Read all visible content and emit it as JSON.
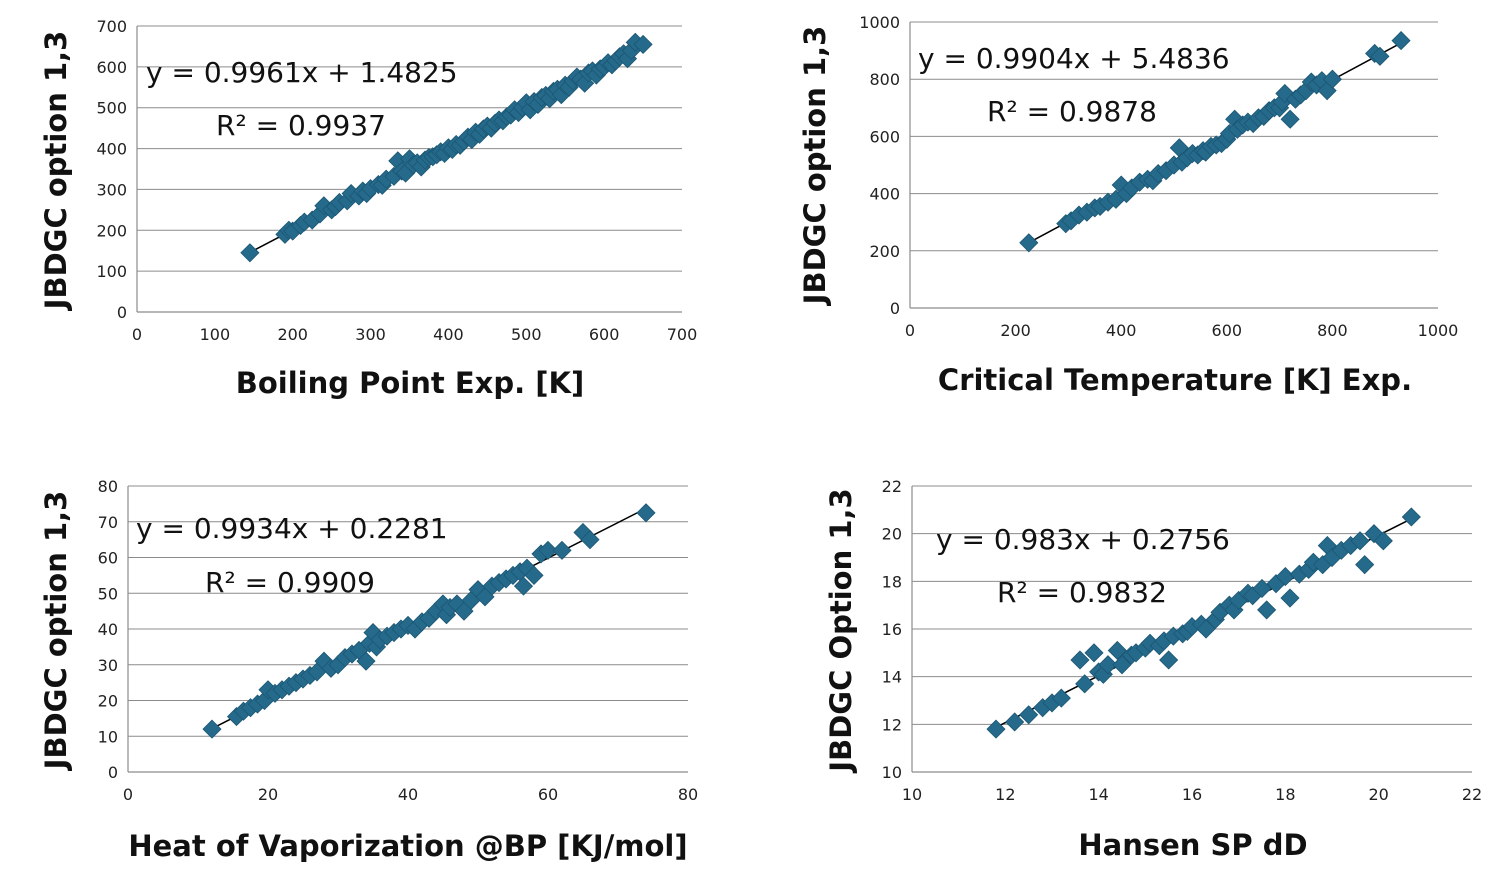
{
  "marker_color": "#256a8a",
  "chart_data": [
    {
      "type": "scatter",
      "xlabel": "Boiling Point Exp. [K]",
      "ylabel": "JBDGC option 1,3",
      "xlim": [
        0,
        700
      ],
      "ylim": [
        0,
        700
      ],
      "xticks": [
        "0",
        "100",
        "200",
        "300",
        "400",
        "500",
        "600",
        "700"
      ],
      "yticks": [
        "0",
        "100",
        "200",
        "300",
        "400",
        "500",
        "600",
        "700"
      ],
      "grid": true,
      "trendline": {
        "slope": 0.9961,
        "intercept": 1.4825,
        "x_range": [
          145,
          650
        ]
      },
      "equation": "y = 0.9961x + 1.4825",
      "r2": "R² = 0.9937",
      "x": [
        145,
        190,
        195,
        200,
        210,
        215,
        225,
        235,
        240,
        250,
        255,
        260,
        270,
        275,
        285,
        290,
        295,
        300,
        310,
        315,
        320,
        330,
        335,
        340,
        345,
        350,
        355,
        360,
        365,
        370,
        375,
        380,
        385,
        390,
        395,
        400,
        405,
        410,
        415,
        420,
        425,
        430,
        435,
        440,
        445,
        450,
        455,
        460,
        465,
        470,
        475,
        480,
        485,
        490,
        495,
        500,
        505,
        510,
        515,
        520,
        525,
        530,
        535,
        540,
        545,
        550,
        555,
        560,
        565,
        570,
        575,
        580,
        585,
        590,
        595,
        600,
        605,
        610,
        615,
        620,
        625,
        630,
        635,
        640,
        650
      ],
      "y": [
        145,
        190,
        200,
        198,
        212,
        220,
        225,
        240,
        260,
        250,
        258,
        268,
        272,
        290,
        284,
        296,
        290,
        302,
        312,
        310,
        325,
        332,
        370,
        345,
        340,
        375,
        360,
        365,
        355,
        372,
        378,
        380,
        385,
        392,
        388,
        402,
        398,
        410,
        408,
        418,
        428,
        422,
        440,
        435,
        448,
        455,
        450,
        462,
        470,
        468,
        478,
        482,
        495,
        488,
        500,
        512,
        495,
        515,
        508,
        525,
        530,
        522,
        540,
        545,
        532,
        555,
        550,
        565,
        575,
        570,
        560,
        585,
        590,
        580,
        595,
        600,
        610,
        605,
        615,
        625,
        632,
        620,
        640,
        660,
        655
      ]
    },
    {
      "type": "scatter",
      "xlabel": "Critical Temperature [K] Exp.",
      "ylabel": "JBDGC option 1,3",
      "xlim": [
        0,
        1000
      ],
      "ylim": [
        0,
        1000
      ],
      "xticks": [
        "0",
        "200",
        "400",
        "600",
        "800",
        "1000"
      ],
      "yticks": [
        "0",
        "200",
        "400",
        "600",
        "800",
        "1000"
      ],
      "grid": true,
      "trendline": {
        "slope": 0.9904,
        "intercept": 5.4836,
        "x_range": [
          225,
          930
        ]
      },
      "equation": "y = 0.9904x + 5.4836",
      "r2": "R² = 0.9878",
      "x": [
        225,
        295,
        305,
        320,
        335,
        350,
        360,
        375,
        390,
        400,
        410,
        420,
        435,
        450,
        460,
        470,
        485,
        500,
        510,
        515,
        525,
        535,
        545,
        555,
        560,
        570,
        580,
        590,
        600,
        605,
        615,
        620,
        630,
        640,
        650,
        660,
        670,
        680,
        690,
        700,
        705,
        710,
        720,
        730,
        740,
        750,
        760,
        770,
        780,
        790,
        800,
        880,
        890,
        930
      ],
      "y": [
        228,
        295,
        305,
        325,
        335,
        350,
        355,
        370,
        380,
        430,
        400,
        420,
        440,
        450,
        445,
        470,
        480,
        500,
        560,
        510,
        525,
        540,
        535,
        550,
        545,
        565,
        570,
        575,
        590,
        610,
        660,
        625,
        640,
        650,
        645,
        665,
        670,
        690,
        700,
        700,
        720,
        750,
        660,
        730,
        745,
        760,
        790,
        780,
        795,
        760,
        800,
        890,
        880,
        935
      ]
    },
    {
      "type": "scatter",
      "xlabel": "Heat of Vaporization @BP [KJ/mol]",
      "ylabel": "JBDGC option 1,3",
      "xlim": [
        0,
        80
      ],
      "ylim": [
        0,
        80
      ],
      "xticks": [
        "0",
        "20",
        "40",
        "60",
        "80"
      ],
      "yticks": [
        "0",
        "10",
        "20",
        "30",
        "40",
        "50",
        "60",
        "70",
        "80"
      ],
      "grid": true,
      "trendline": {
        "slope": 0.9934,
        "intercept": 0.2281,
        "x_range": [
          12,
          74
        ]
      },
      "equation": "y = 0.9934x + 0.2281",
      "r2": "R² = 0.9909",
      "x": [
        12,
        15.5,
        16.5,
        17.5,
        18.5,
        19.5,
        20,
        21,
        22,
        23,
        24,
        25,
        26,
        27,
        28,
        29,
        30,
        31,
        32,
        33,
        34,
        34.5,
        35,
        35.5,
        36,
        37,
        38,
        39,
        40,
        41,
        42,
        43,
        44,
        45,
        45.5,
        46,
        47,
        48,
        49,
        50,
        51,
        52,
        53,
        54,
        55,
        56,
        56.5,
        57,
        58,
        59,
        60,
        62,
        65,
        66,
        74
      ],
      "y": [
        12,
        15.5,
        17,
        18,
        19,
        20,
        23,
        22,
        23,
        24,
        25,
        26,
        27,
        28,
        31,
        29,
        30,
        32,
        33,
        34,
        31,
        36,
        39,
        35,
        37,
        38,
        39,
        40,
        41,
        40,
        42,
        43,
        45,
        47,
        44,
        46,
        47,
        45,
        48,
        51,
        49,
        52,
        53,
        54,
        55,
        56,
        52,
        57,
        55,
        61,
        62,
        62,
        67,
        65,
        72.5
      ]
    },
    {
      "type": "scatter",
      "xlabel": "Hansen SP dD",
      "ylabel": "JBDGC Option 1,3",
      "xlim": [
        10,
        22
      ],
      "ylim": [
        10,
        22
      ],
      "xticks": [
        "10",
        "12",
        "14",
        "16",
        "18",
        "20",
        "22"
      ],
      "yticks": [
        "10",
        "12",
        "14",
        "16",
        "18",
        "20",
        "22"
      ],
      "grid": true,
      "trendline": {
        "slope": 0.983,
        "intercept": 0.2756,
        "x_range": [
          11.8,
          20.7
        ]
      },
      "equation": "y = 0.983x + 0.2756",
      "r2": "R² = 0.9832",
      "x": [
        11.8,
        12.2,
        12.5,
        12.8,
        13,
        13.2,
        13.6,
        13.7,
        13.9,
        14,
        14.1,
        14.2,
        14.4,
        14.5,
        14.7,
        14.8,
        15,
        15.1,
        15.3,
        15.4,
        15.5,
        15.6,
        15.8,
        15.9,
        16,
        16.2,
        16.3,
        16.5,
        16.6,
        16.8,
        16.9,
        17,
        17.2,
        17.3,
        17.5,
        17.6,
        17.8,
        18,
        18.1,
        18.3,
        18.5,
        18.6,
        18.8,
        18.9,
        19,
        19.2,
        19.4,
        19.6,
        19.7,
        19.9,
        20.1,
        20.7
      ],
      "y": [
        11.8,
        12.1,
        12.4,
        12.7,
        12.9,
        13.1,
        14.7,
        13.7,
        15,
        14.2,
        14.1,
        14.5,
        15.1,
        14.5,
        14.9,
        15,
        15.2,
        15.4,
        15.3,
        15.5,
        14.7,
        15.7,
        15.8,
        15.9,
        16.1,
        16.2,
        16,
        16.4,
        16.7,
        17,
        16.8,
        17.2,
        17.5,
        17.4,
        17.7,
        16.8,
        17.9,
        18.2,
        17.3,
        18.3,
        18.5,
        18.8,
        18.7,
        19.5,
        19,
        19.3,
        19.5,
        19.7,
        18.7,
        20,
        19.7,
        20.7
      ]
    }
  ]
}
